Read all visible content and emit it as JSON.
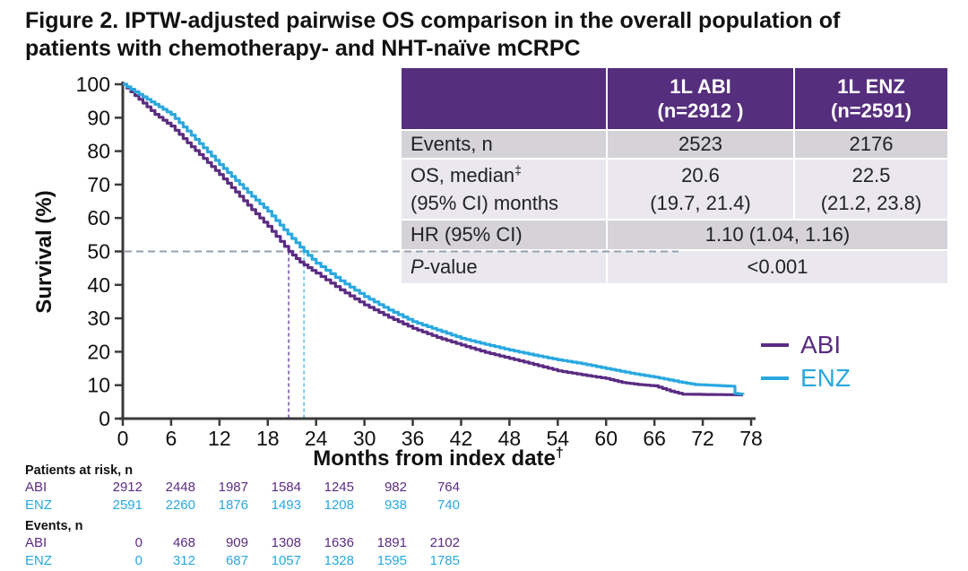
{
  "title": {
    "line1": "Figure 2. IPTW-adjusted pairwise OS comparison in the overall population of",
    "line2": "patients with chemotherapy- and NHT-naïve mCRPC"
  },
  "colors": {
    "abi": "#5b2c83",
    "enz": "#29a8e0",
    "abi_dashed": "#9077b8",
    "enz_dashed": "#7ac9ef",
    "dashed_gray": "#93a0ae",
    "table_header_bg": "#552e7d",
    "row_dark": "#d5d3d8",
    "row_light": "#eae8ee",
    "axis": "#3a3a3a",
    "text": "#111111"
  },
  "stats_table": {
    "col_headers": [
      {
        "line1": "1L ABI",
        "line2": "(n=2912 )"
      },
      {
        "line1": "1L ENZ",
        "line2": "(n=2591)"
      }
    ],
    "rows": {
      "events": {
        "label": "Events, n",
        "abi": "2523",
        "enz": "2176"
      },
      "os_median": {
        "label_line1": "OS, median",
        "label_sup": "‡",
        "label_line2": "(95% CI) months",
        "abi_line1": "20.6",
        "abi_line2": "(19.7, 21.4)",
        "enz_line1": "22.5",
        "enz_line2": "(21.2, 23.8)"
      },
      "hr": {
        "label": "HR (95% CI)",
        "value": "1.10 (1.04, 1.16)"
      },
      "pvalue": {
        "label_italic": "P",
        "label_rest": "-value",
        "value": "<0.001"
      }
    }
  },
  "legend": {
    "items": [
      {
        "id": "abi",
        "label": "ABI"
      },
      {
        "id": "enz",
        "label": "ENZ"
      }
    ]
  },
  "chart_data": {
    "type": "line",
    "subtype": "kaplan-meier-step",
    "title": "",
    "xlabel": "Months from index date",
    "xlabel_superscript": "†",
    "ylabel": "Survival (%)",
    "xlim": [
      0,
      78
    ],
    "ylim": [
      0,
      100
    ],
    "xticks": [
      0,
      6,
      12,
      18,
      24,
      30,
      36,
      42,
      48,
      54,
      60,
      66,
      72,
      78
    ],
    "yticks": [
      0,
      10,
      20,
      30,
      40,
      50,
      60,
      70,
      80,
      90,
      100
    ],
    "grid": false,
    "legend_position": "right",
    "median_reference": {
      "survival_pct": 50,
      "abi_median_months": 20.6,
      "enz_median_months": 22.5
    },
    "series": [
      {
        "name": "ABI",
        "color_key": "abi",
        "points": [
          [
            0,
            100
          ],
          [
            2,
            95.5
          ],
          [
            4,
            91
          ],
          [
            6,
            87.5
          ],
          [
            8,
            82.5
          ],
          [
            10,
            77.8
          ],
          [
            12,
            73
          ],
          [
            14,
            67.8
          ],
          [
            16,
            62.5
          ],
          [
            18,
            57.5
          ],
          [
            20.6,
            50
          ],
          [
            22,
            46.8
          ],
          [
            24,
            43.5
          ],
          [
            27,
            38.5
          ],
          [
            30,
            34
          ],
          [
            33,
            30.3
          ],
          [
            36,
            27
          ],
          [
            39,
            24.3
          ],
          [
            42,
            22
          ],
          [
            45,
            19.8
          ],
          [
            48,
            18
          ],
          [
            51,
            16.2
          ],
          [
            54,
            14.3
          ],
          [
            57,
            13.1
          ],
          [
            60,
            12
          ],
          [
            62,
            10.8
          ],
          [
            64,
            10.2
          ],
          [
            66,
            9.8
          ],
          [
            68,
            8.2
          ],
          [
            69.5,
            7.3
          ],
          [
            77,
            7.1
          ]
        ]
      },
      {
        "name": "ENZ",
        "color_key": "enz",
        "points": [
          [
            0,
            100
          ],
          [
            2,
            97
          ],
          [
            4,
            94
          ],
          [
            6,
            91
          ],
          [
            8,
            86
          ],
          [
            10,
            81
          ],
          [
            12,
            76
          ],
          [
            14,
            71.2
          ],
          [
            16,
            66.5
          ],
          [
            18,
            62
          ],
          [
            20,
            56.5
          ],
          [
            22.5,
            50
          ],
          [
            24,
            46.5
          ],
          [
            27,
            41.2
          ],
          [
            30,
            36.5
          ],
          [
            33,
            32.5
          ],
          [
            36,
            29
          ],
          [
            39,
            26.5
          ],
          [
            42,
            24
          ],
          [
            45,
            22.2
          ],
          [
            48,
            20.5
          ],
          [
            51,
            19
          ],
          [
            54,
            17.6
          ],
          [
            57,
            16.4
          ],
          [
            60,
            15
          ],
          [
            63,
            13.6
          ],
          [
            66,
            12.4
          ],
          [
            69,
            11
          ],
          [
            71,
            10.2
          ],
          [
            75.5,
            9.7
          ],
          [
            76,
            7.5
          ],
          [
            77,
            7.2
          ]
        ]
      }
    ]
  },
  "risk_table": {
    "sections": [
      {
        "header": "Patients at risk, n",
        "rows": [
          {
            "id": "abi",
            "label": "ABI",
            "values": [
              "2912",
              "2448",
              "1987",
              "1584",
              "1245",
              "982",
              "764"
            ]
          },
          {
            "id": "enz",
            "label": "ENZ",
            "values": [
              "2591",
              "2260",
              "1876",
              "1493",
              "1208",
              "938",
              "740"
            ]
          }
        ]
      },
      {
        "header": "Events, n",
        "rows": [
          {
            "id": "abi",
            "label": "ABI",
            "values": [
              "0",
              "468",
              "909",
              "1308",
              "1636",
              "1891",
              "2102"
            ]
          },
          {
            "id": "enz",
            "label": "ENZ",
            "values": [
              "0",
              "312",
              "687",
              "1057",
              "1328",
              "1595",
              "1785"
            ]
          }
        ]
      }
    ]
  }
}
